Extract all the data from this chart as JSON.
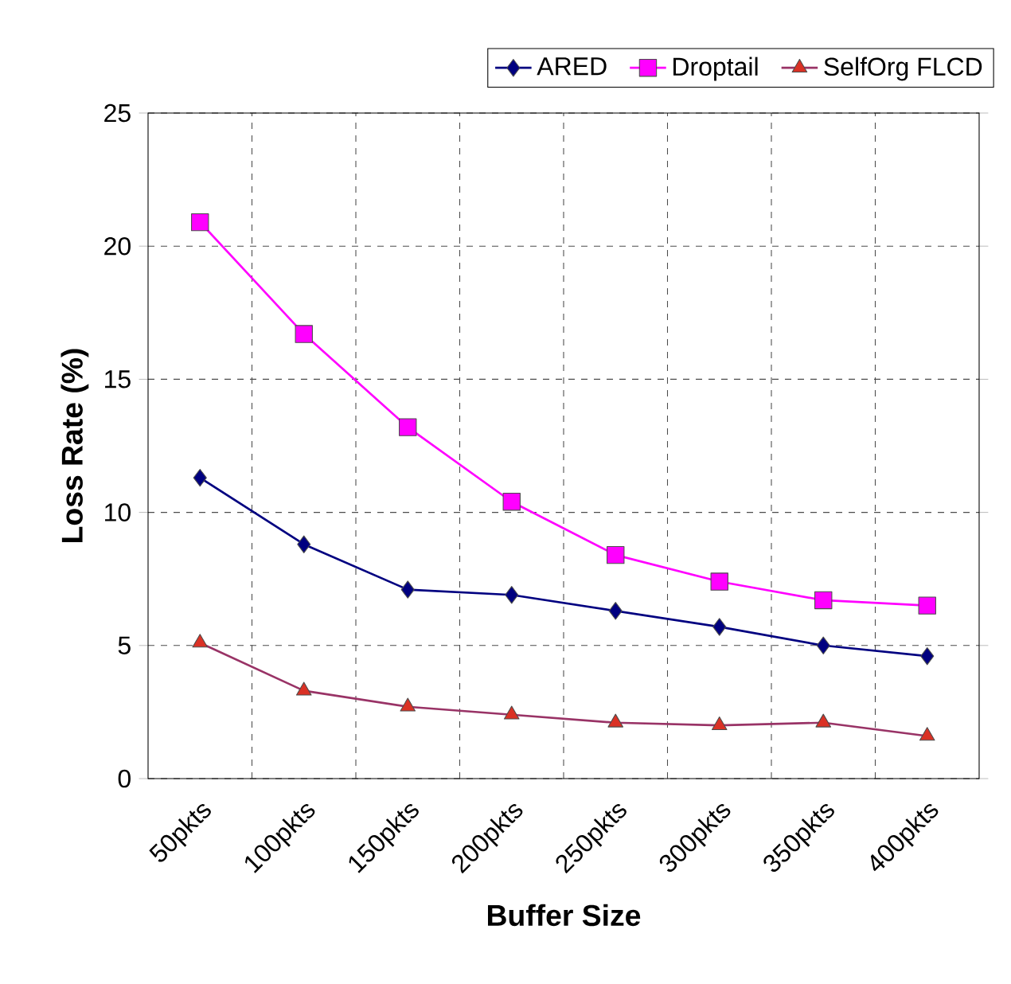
{
  "chart_data": {
    "type": "line",
    "xlabel": "Buffer Size",
    "ylabel": "Loss Rate (%)",
    "categories": [
      "50pkts",
      "100pkts",
      "150pkts",
      "200pkts",
      "250pkts",
      "300pkts",
      "350pkts",
      "400pkts"
    ],
    "series": [
      {
        "name": "ARED",
        "color": "#000080",
        "marker": "diamond",
        "values": [
          11.3,
          8.8,
          7.1,
          6.9,
          6.3,
          5.7,
          5.0,
          4.6
        ]
      },
      {
        "name": "Droptail",
        "color": "#ff00ff",
        "marker": "square",
        "values": [
          20.9,
          16.7,
          13.2,
          10.4,
          8.4,
          7.4,
          6.7,
          6.5
        ]
      },
      {
        "name": "SelfOrg FLCD",
        "color": "#993366",
        "marker": "triangle",
        "values": [
          5.1,
          3.3,
          2.7,
          2.4,
          2.1,
          2.0,
          2.1,
          1.6
        ]
      }
    ],
    "ylim": [
      0,
      25
    ],
    "yticks": [
      0,
      5,
      10,
      15,
      20,
      25
    ],
    "grid": true,
    "legend": "top right",
    "line_style": "solid"
  }
}
